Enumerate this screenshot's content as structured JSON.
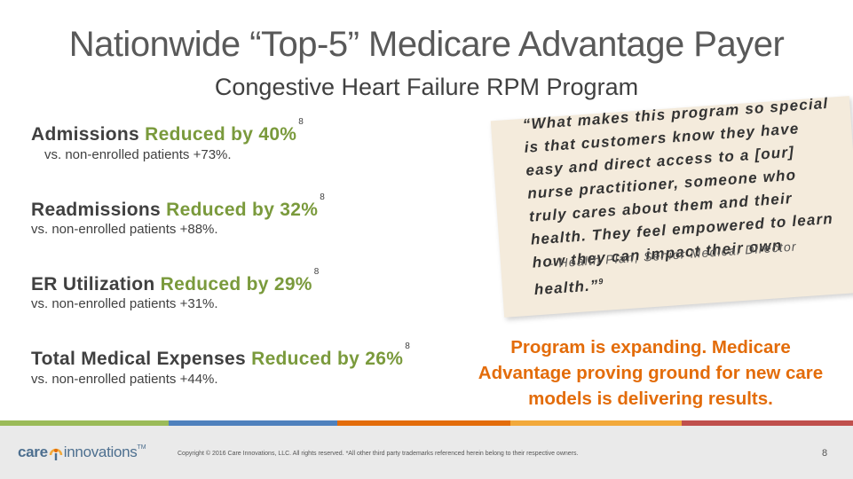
{
  "title": "Nationwide “Top-5” Medicare Advantage Payer",
  "subtitle": "Congestive Heart Failure RPM Program",
  "metrics": [
    {
      "label": "Admissions",
      "highlight": "Reduced by 40%",
      "ref": "8",
      "sub": "vs. non-enrolled patients +73%."
    },
    {
      "label": "Readmissions",
      "highlight": "Reduced by 32%",
      "ref": "8",
      "sub": "vs. non-enrolled patients +88%."
    },
    {
      "label": "ER Utilization",
      "highlight": "Reduced by 29%",
      "ref": "8",
      "sub": "vs. non-enrolled patients +31%."
    },
    {
      "label": "Total Medical Expenses",
      "highlight": "Reduced by 26%",
      "ref": "8",
      "sub": "vs. non-enrolled patients +44%."
    }
  ],
  "quote": {
    "text": "“What makes this program so special is that customers know they have easy and direct access to a [our] nurse practitioner, someone who truly cares about them and their health. They feel empowered to learn how they can impact their own health.”",
    "ref": "9",
    "attribution": "- Health Plan, Senior Medical Director"
  },
  "callout": "Program is expanding. Medicare Advantage proving ground for new care models is delivering results.",
  "footer": {
    "logo_care": "care",
    "logo_innovations": "innovations",
    "logo_tm": "TM",
    "copyright": "Copyright © 2016 Care Innovations, LLC. All rights reserved. *All other third party trademarks referenced herein belong to their respective owners.",
    "page_number": "8"
  },
  "colors": {
    "highlight_green": "#7a9a3c",
    "callout_orange": "#e36c0a",
    "quote_card": "#f4ebdc",
    "stripes": [
      "#9bbb59",
      "#4f81bd",
      "#e36c0a",
      "#f2a93b",
      "#c0504d"
    ]
  }
}
